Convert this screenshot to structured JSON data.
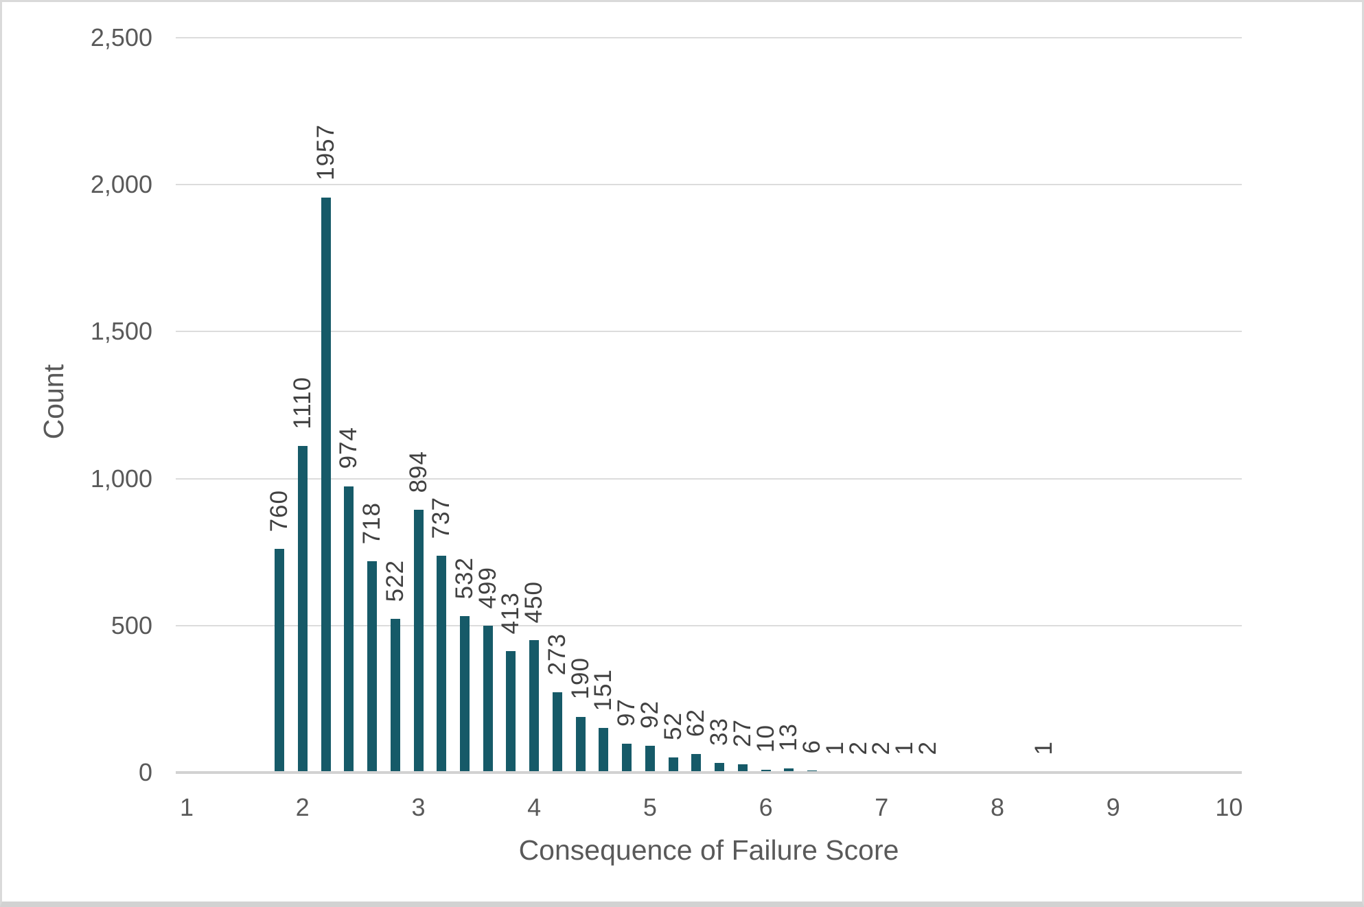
{
  "chart_data": {
    "type": "bar",
    "title": "",
    "xlabel": "Consequence of Failure Score",
    "ylabel": "Count",
    "x": [
      1.8,
      2.0,
      2.2,
      2.4,
      2.6,
      2.8,
      3.0,
      3.2,
      3.4,
      3.6,
      3.8,
      4.0,
      4.2,
      4.4,
      4.6,
      4.8,
      5.0,
      5.2,
      5.4,
      5.6,
      5.8,
      6.0,
      6.2,
      6.4,
      6.6,
      6.8,
      7.0,
      7.2,
      7.4,
      8.4
    ],
    "values": [
      760,
      1110,
      1957,
      974,
      718,
      522,
      894,
      737,
      532,
      499,
      413,
      450,
      273,
      190,
      151,
      97,
      92,
      52,
      62,
      33,
      27,
      10,
      13,
      6,
      1,
      2,
      2,
      1,
      2,
      1
    ],
    "data_labels": [
      "760",
      "1110",
      "1957",
      "974",
      "718",
      "522",
      "894",
      "737",
      "532",
      "499",
      "413",
      "450",
      "273",
      "190",
      "151",
      "97",
      "92",
      "52",
      "62",
      "33",
      "27",
      "10",
      "13",
      "6",
      "1",
      "2",
      "2",
      "1",
      "2",
      "1"
    ],
    "x_ticks": [
      1,
      2,
      3,
      4,
      5,
      6,
      7,
      8,
      9,
      10
    ],
    "x_tick_labels": [
      "1",
      "2",
      "3",
      "4",
      "5",
      "6",
      "7",
      "8",
      "9",
      "10"
    ],
    "y_ticks": [
      0,
      500,
      1000,
      1500,
      2000,
      2500
    ],
    "y_tick_labels": [
      "0",
      "500",
      "1,000",
      "1,500",
      "2,000",
      "2,500"
    ],
    "xlim": [
      0.905,
      10.11
    ],
    "ylim": [
      0,
      2500
    ],
    "grid": true,
    "legend": false,
    "data_labels_rotated": true,
    "bar_color": "#165a68",
    "data_label_color": "#414141",
    "axis_text_color": "#595959",
    "gridline_color": "#dcdcdc",
    "axis_line_color": "#d2d2d2"
  }
}
